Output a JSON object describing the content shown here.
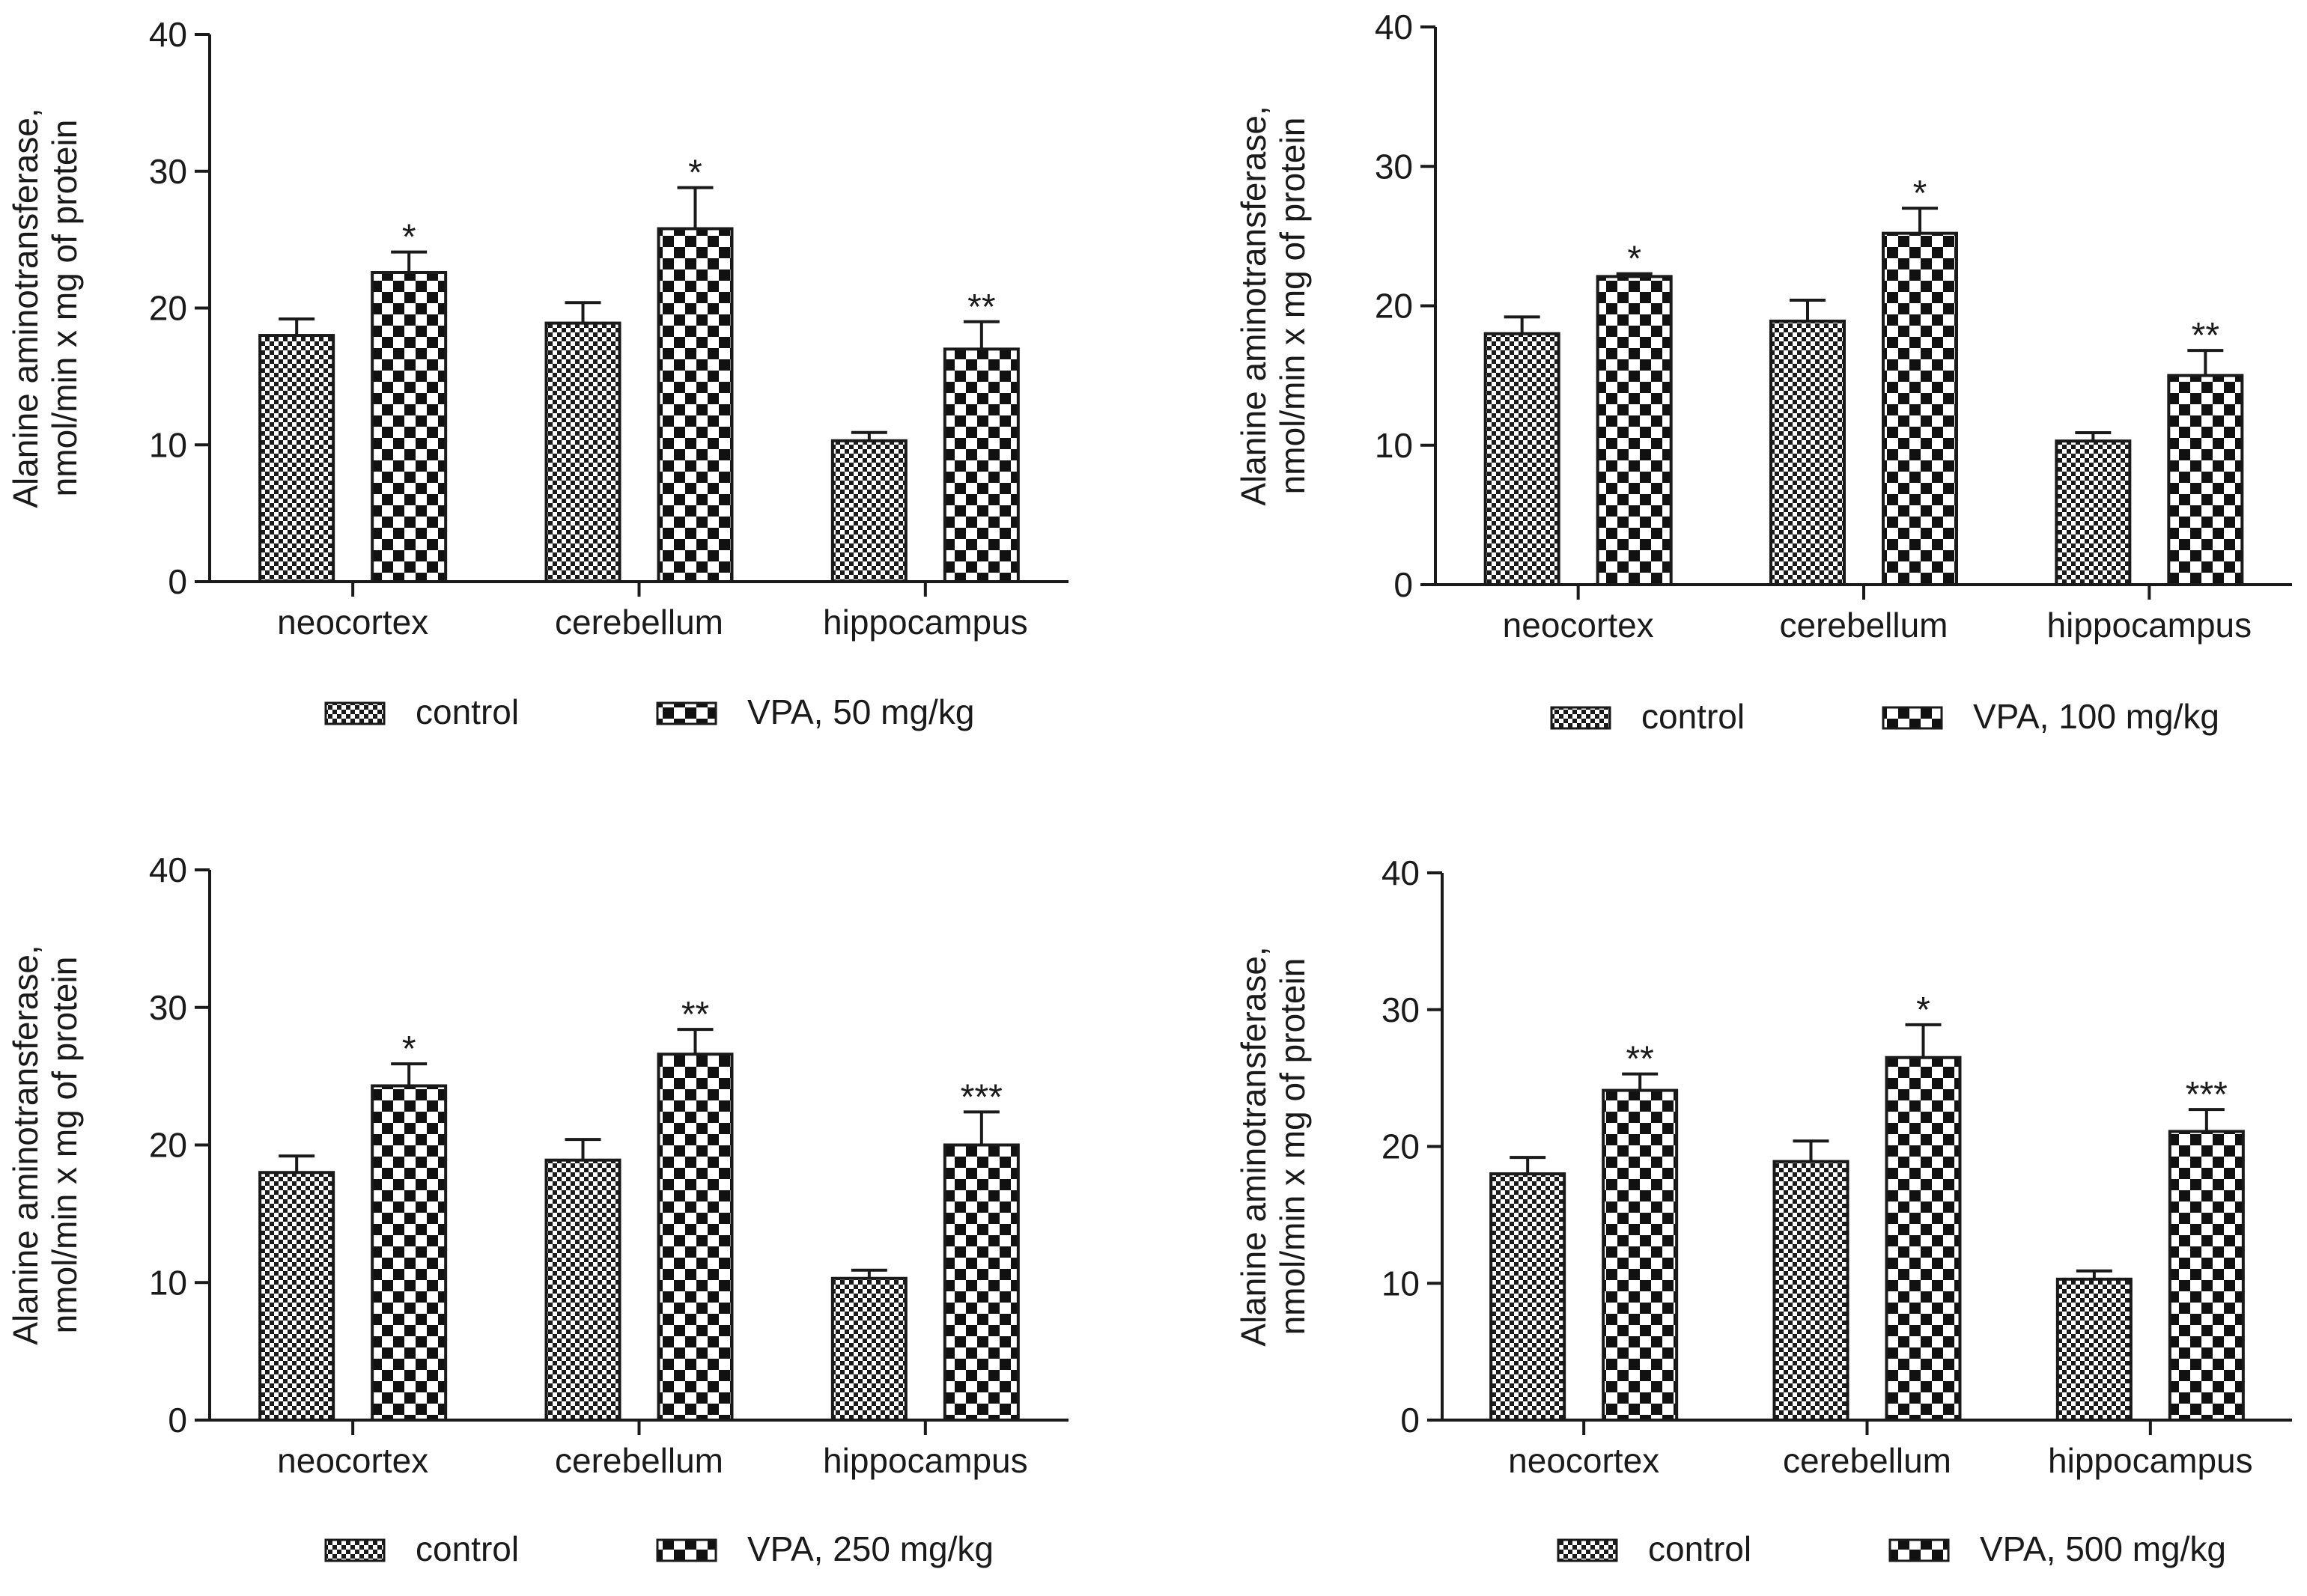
{
  "chart_data": [
    {
      "type": "bar",
      "title": "",
      "ylabel": [
        "Alanine aminotransferase,",
        "nmol/min x mg of protein"
      ],
      "xlabel": "",
      "ylim": [
        0,
        40
      ],
      "yticks": [
        0,
        10,
        20,
        30,
        40
      ],
      "categories": [
        "neocortex",
        "cerebellum",
        "hippocampus"
      ],
      "series": [
        {
          "name": "control",
          "pattern": "fine",
          "values": [
            18.0,
            18.9,
            10.3
          ],
          "errors": [
            1.2,
            1.5,
            0.6
          ],
          "annotations": [
            "",
            "",
            ""
          ]
        },
        {
          "name": "VPA, 50 mg/kg",
          "pattern": "coarse",
          "values": [
            22.6,
            25.8,
            17.0
          ],
          "errors": [
            1.5,
            3.0,
            2.0
          ],
          "annotations": [
            "*",
            "*",
            "**"
          ]
        }
      ],
      "legend": "bottom"
    },
    {
      "type": "bar",
      "title": "",
      "ylabel": [
        "Alanine aminotransferase,",
        "nmol/min x mg of protein"
      ],
      "xlabel": "",
      "ylim": [
        0,
        40
      ],
      "yticks": [
        0,
        10,
        20,
        30,
        40
      ],
      "categories": [
        "neocortex",
        "cerebellum",
        "hippocampus"
      ],
      "series": [
        {
          "name": "control",
          "pattern": "fine",
          "values": [
            18.0,
            18.9,
            10.3
          ],
          "errors": [
            1.2,
            1.5,
            0.6
          ],
          "annotations": [
            "",
            "",
            ""
          ]
        },
        {
          "name": "VPA, 100 mg/kg",
          "pattern": "coarse",
          "values": [
            22.1,
            25.2,
            15.0
          ],
          "errors": [
            0.2,
            1.8,
            1.8
          ],
          "annotations": [
            "*",
            "*",
            "**"
          ]
        }
      ],
      "legend": "bottom"
    },
    {
      "type": "bar",
      "title": "",
      "ylabel": [
        "Alanine aminotransferase,",
        "nmol/min x mg of protein"
      ],
      "xlabel": "",
      "ylim": [
        0,
        40
      ],
      "yticks": [
        0,
        10,
        20,
        30,
        40
      ],
      "categories": [
        "neocortex",
        "cerebellum",
        "hippocampus"
      ],
      "series": [
        {
          "name": "control",
          "pattern": "fine",
          "values": [
            18.0,
            18.9,
            10.3
          ],
          "errors": [
            1.2,
            1.5,
            0.6
          ],
          "annotations": [
            "",
            "",
            ""
          ]
        },
        {
          "name": "VPA, 250 mg/kg",
          "pattern": "coarse",
          "values": [
            24.3,
            26.6,
            20.0
          ],
          "errors": [
            1.6,
            1.8,
            2.4
          ],
          "annotations": [
            "*",
            "**",
            "***"
          ]
        }
      ],
      "legend": "bottom"
    },
    {
      "type": "bar",
      "title": "",
      "ylabel": [
        "Alanine aminotransferase,",
        "nmol/min x mg of protein"
      ],
      "xlabel": "",
      "ylim": [
        0,
        40
      ],
      "yticks": [
        0,
        10,
        20,
        30,
        40
      ],
      "categories": [
        "neocortex",
        "cerebellum",
        "hippocampus"
      ],
      "series": [
        {
          "name": "control",
          "pattern": "fine",
          "values": [
            18.0,
            18.9,
            10.3
          ],
          "errors": [
            1.2,
            1.5,
            0.6
          ],
          "annotations": [
            "",
            "",
            ""
          ]
        },
        {
          "name": "VPA, 500 mg/kg",
          "pattern": "coarse",
          "values": [
            24.1,
            26.5,
            21.1
          ],
          "errors": [
            1.2,
            2.4,
            1.6
          ],
          "annotations": [
            "**",
            "*",
            "***"
          ]
        }
      ],
      "legend": "bottom"
    }
  ]
}
